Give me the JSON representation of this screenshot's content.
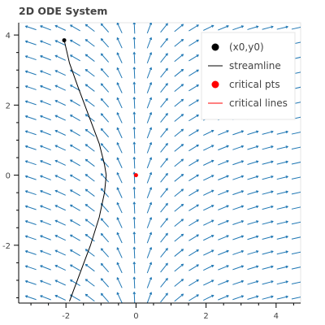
{
  "chart_data": {
    "type": "line",
    "title": "2D ODE System",
    "xlabel": "",
    "ylabel": "",
    "xlim": [
      -3.35,
      4.7
    ],
    "ylim": [
      -3.65,
      4.35
    ],
    "x_ticks": [
      -2,
      0,
      2,
      4
    ],
    "y_ticks": [
      -2,
      0,
      2,
      4
    ],
    "legend": {
      "placement": "top-right",
      "entries": [
        {
          "label": "(x0,y0)",
          "kind": "marker",
          "color": "#000000"
        },
        {
          "label": "streamline",
          "kind": "line",
          "color": "#000000"
        },
        {
          "label": "critical pts",
          "kind": "marker",
          "color": "#ff0000"
        },
        {
          "label": "critical lines",
          "kind": "line",
          "color": "#ff0000"
        }
      ]
    },
    "initial_point": {
      "x": -2.05,
      "y": 3.85
    },
    "streamline": {
      "x": [
        -2.05,
        -1.9,
        -1.65,
        -1.35,
        -1.05,
        -0.9,
        -0.85,
        -0.9,
        -1.05,
        -1.3,
        -1.6,
        -1.9
      ],
      "y": [
        3.85,
        3.2,
        2.5,
        1.7,
        0.9,
        0.3,
        0.0,
        -0.5,
        -1.2,
        -2.0,
        -2.8,
        -3.6
      ]
    },
    "critical_points": [
      {
        "x": 0.0,
        "y": 0.0
      }
    ],
    "vector_field": {
      "x_range": [
        -3.0,
        4.6
      ],
      "y_range": [
        -3.5,
        4.2
      ],
      "nx": 19,
      "ny": 19,
      "color": "#1f77b4"
    }
  }
}
